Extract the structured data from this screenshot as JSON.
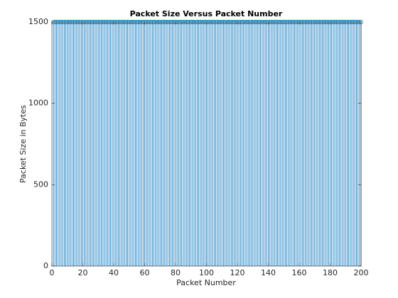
{
  "chart_data": {
    "type": "stem",
    "title": "Packet Size Versus Packet Number",
    "x_label": "Packet Number",
    "y_label": "Packet Size in Bytes",
    "color": "#0072bd",
    "marker": "circle",
    "xlim": [
      0,
      200
    ],
    "xticks": [
      0,
      20,
      40,
      60,
      80,
      100,
      120,
      140,
      160,
      180,
      200
    ],
    "ylim": [
      0,
      1500
    ],
    "yticks": [
      0,
      500,
      1000,
      1500
    ],
    "x": [
      1,
      2,
      3,
      4,
      5,
      6,
      7,
      8,
      9,
      10,
      11,
      12,
      13,
      14,
      15,
      16,
      17,
      18,
      19,
      20,
      21,
      22,
      23,
      24,
      25,
      26,
      27,
      28,
      29,
      30,
      31,
      32,
      33,
      34,
      35,
      36,
      37,
      38,
      39,
      40,
      41,
      42,
      43,
      44,
      45,
      46,
      47,
      48,
      49,
      50,
      51,
      52,
      53,
      54,
      55,
      56,
      57,
      58,
      59,
      60,
      61,
      62,
      63,
      64,
      65,
      66,
      67,
      68,
      69,
      70,
      71,
      72,
      73,
      74,
      75,
      76,
      77,
      78,
      79,
      80,
      81,
      82,
      83,
      84,
      85,
      86,
      87,
      88,
      89,
      90,
      91,
      92,
      93,
      94,
      95,
      96,
      97,
      98,
      99,
      100,
      101,
      102,
      103,
      104,
      105,
      106,
      107,
      108,
      109,
      110,
      111,
      112,
      113,
      114,
      115,
      116,
      117,
      118,
      119,
      120,
      121,
      122,
      123,
      124,
      125,
      126,
      127,
      128,
      129,
      130,
      131,
      132,
      133,
      134,
      135,
      136,
      137,
      138,
      139,
      140,
      141,
      142,
      143,
      144,
      145,
      146,
      147,
      148,
      149,
      150,
      151,
      152,
      153,
      154,
      155,
      156,
      157,
      158,
      159,
      160,
      161,
      162,
      163,
      164,
      165,
      166,
      167,
      168,
      169,
      170,
      171,
      172,
      173,
      174,
      175,
      176,
      177,
      178,
      179,
      180,
      181,
      182,
      183,
      184,
      185,
      186,
      187,
      188,
      189,
      190,
      191,
      192,
      193,
      194,
      195,
      196,
      197,
      198,
      199,
      200
    ],
    "values": [
      1500,
      1500,
      1500,
      1500,
      1500,
      1500,
      1500,
      1500,
      1500,
      1500,
      1500,
      1500,
      1500,
      1500,
      1500,
      1500,
      1500,
      1500,
      1500,
      1500,
      1500,
      1500,
      1500,
      1500,
      1500,
      1500,
      1500,
      1500,
      1500,
      1500,
      1500,
      1500,
      1500,
      1500,
      1500,
      1500,
      1500,
      1500,
      1500,
      1500,
      1500,
      1500,
      1500,
      1500,
      1500,
      1500,
      1500,
      1500,
      1500,
      1500,
      1500,
      1500,
      1500,
      1500,
      1500,
      1500,
      1500,
      1500,
      1500,
      1500,
      1500,
      1500,
      1500,
      1500,
      1500,
      1500,
      1500,
      1500,
      1500,
      1500,
      1500,
      1500,
      1500,
      1500,
      1500,
      1500,
      1500,
      1500,
      1500,
      1500,
      1500,
      1500,
      1500,
      1500,
      1500,
      1500,
      1500,
      1500,
      1500,
      1500,
      1500,
      1500,
      1500,
      1500,
      1500,
      1500,
      1500,
      1500,
      1500,
      1500,
      1500,
      1500,
      1500,
      1500,
      1500,
      1500,
      1500,
      1500,
      1500,
      1500,
      1500,
      1500,
      1500,
      1500,
      1500,
      1500,
      1500,
      1500,
      1500,
      1500,
      1500,
      1500,
      1500,
      1500,
      1500,
      1500,
      1500,
      1500,
      1500,
      1500,
      1500,
      1500,
      1500,
      1500,
      1500,
      1500,
      1500,
      1500,
      1500,
      1500,
      1500,
      1500,
      1500,
      1500,
      1500,
      1500,
      1500,
      1500,
      1500,
      1500,
      1500,
      1500,
      1500,
      1500,
      1500,
      1500,
      1500,
      1500,
      1500,
      1500,
      1500,
      1500,
      1500,
      1500,
      1500,
      1500,
      1500,
      1500,
      1500,
      1500,
      1500,
      1500,
      1500,
      1500,
      1500,
      1500,
      1500,
      1500,
      1500,
      1500,
      1500,
      1500,
      1500,
      1500,
      1500,
      1500,
      1500,
      1500,
      1500,
      1500,
      1500,
      1500,
      1500,
      1500,
      1500,
      1500,
      1500,
      1500,
      1500,
      1500
    ]
  }
}
